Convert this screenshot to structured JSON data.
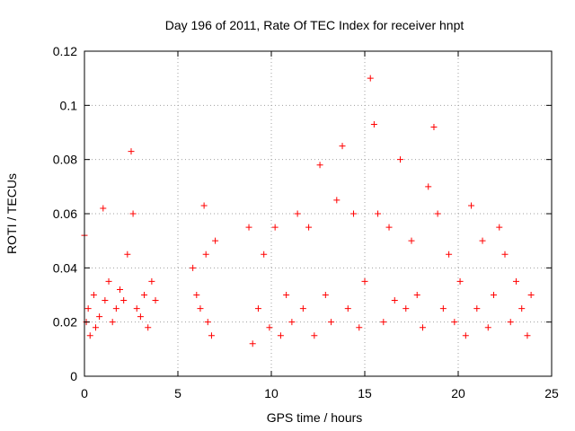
{
  "chart_data": {
    "type": "scatter",
    "title": "Day 196 of 2011, Rate Of TEC Index for receiver hnpt",
    "xlabel": "GPS time / hours",
    "ylabel": "ROTI / TECUs",
    "xlim": [
      0,
      25
    ],
    "ylim": [
      0,
      0.12
    ],
    "xticks": [
      "0",
      "5",
      "10",
      "15",
      "20",
      "25"
    ],
    "yticks": [
      "0",
      "0.02",
      "0.04",
      "0.06",
      "0.08",
      "0.1",
      "0.12"
    ],
    "grid": true,
    "marker": "+",
    "color": "#ff0000",
    "series": [
      {
        "x": [
          0.0,
          0.1,
          0.2,
          0.3,
          0.5,
          0.6,
          0.8,
          1.0,
          1.1,
          1.3,
          1.5,
          1.7,
          1.9,
          2.1,
          2.3,
          2.5,
          2.6,
          2.8,
          3.0,
          3.2,
          3.4,
          3.6,
          3.8,
          5.8,
          6.0,
          6.2,
          6.4,
          6.5,
          6.6,
          6.8,
          7.0,
          8.8,
          9.0,
          9.3,
          9.6,
          9.9,
          10.2,
          10.5,
          10.8,
          11.1,
          11.4,
          11.7,
          12.0,
          12.3,
          12.6,
          12.9,
          13.2,
          13.5,
          13.8,
          14.1,
          14.4,
          14.7,
          15.0,
          15.3,
          15.5,
          15.7,
          16.0,
          16.3,
          16.6,
          16.9,
          17.2,
          17.5,
          17.8,
          18.1,
          18.4,
          18.7,
          18.9,
          19.2,
          19.5,
          19.8,
          20.1,
          20.4,
          20.7,
          21.0,
          21.3,
          21.6,
          21.9,
          22.2,
          22.5,
          22.8,
          23.1,
          23.4,
          23.7,
          23.9
        ],
        "y": [
          0.052,
          0.02,
          0.025,
          0.015,
          0.03,
          0.018,
          0.022,
          0.062,
          0.028,
          0.035,
          0.02,
          0.025,
          0.032,
          0.028,
          0.045,
          0.083,
          0.06,
          0.025,
          0.022,
          0.03,
          0.018,
          0.035,
          0.028,
          0.04,
          0.03,
          0.025,
          0.063,
          0.045,
          0.02,
          0.015,
          0.05,
          0.055,
          0.012,
          0.025,
          0.045,
          0.018,
          0.055,
          0.015,
          0.03,
          0.02,
          0.06,
          0.025,
          0.055,
          0.015,
          0.078,
          0.03,
          0.02,
          0.065,
          0.085,
          0.025,
          0.06,
          0.018,
          0.035,
          0.11,
          0.093,
          0.06,
          0.02,
          0.055,
          0.028,
          0.08,
          0.025,
          0.05,
          0.03,
          0.018,
          0.07,
          0.092,
          0.06,
          0.025,
          0.045,
          0.02,
          0.035,
          0.015,
          0.063,
          0.025,
          0.05,
          0.018,
          0.03,
          0.055,
          0.045,
          0.02,
          0.035,
          0.025,
          0.015,
          0.03
        ]
      }
    ]
  }
}
